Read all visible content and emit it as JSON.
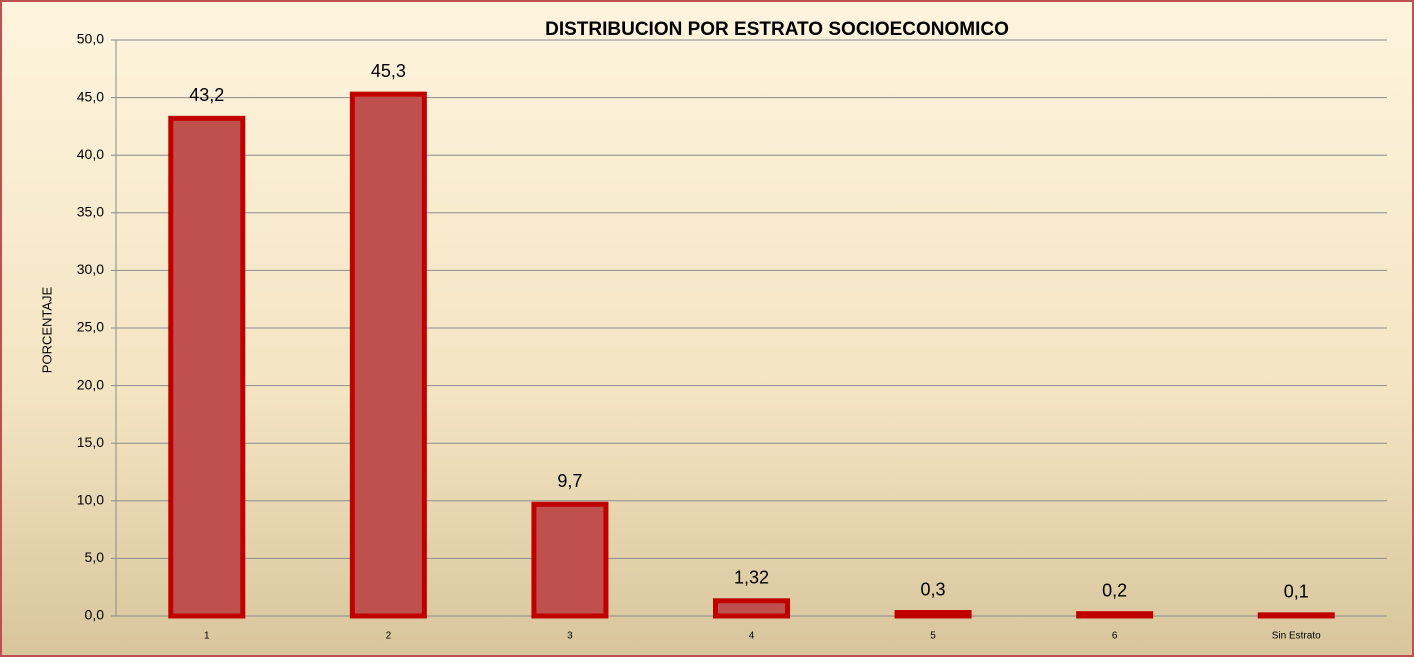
{
  "chart_data": {
    "type": "bar",
    "title": "DISTRIBUCION POR ESTRATO SOCIOECONOMICO",
    "y_label": "PORCENTAJE",
    "categories": [
      "1",
      "2",
      "3",
      "4",
      "5",
      "6",
      "Sin Estrato"
    ],
    "values": [
      43.2,
      45.3,
      9.7,
      1.32,
      0.3,
      0.2,
      0.1
    ],
    "value_labels": [
      "43,2",
      "45,3",
      "9,7",
      "1,32",
      "0,3",
      "0,2",
      "0,1"
    ],
    "color": "#c0504d",
    "edge_color": "#c00000",
    "ylim": [
      0,
      50
    ],
    "yticks": [
      {
        "value": 0,
        "label": "0,0"
      },
      {
        "value": 5,
        "label": "5,0"
      },
      {
        "value": 10,
        "label": "10,0"
      },
      {
        "value": 15,
        "label": "15,0"
      },
      {
        "value": 20,
        "label": "20,0"
      },
      {
        "value": 25,
        "label": "25,0"
      },
      {
        "value": 30,
        "label": "30,0"
      },
      {
        "value": 35,
        "label": "35,0"
      },
      {
        "value": 40,
        "label": "40,0"
      },
      {
        "value": 45,
        "label": "45,0"
      },
      {
        "value": 50,
        "label": "50,0"
      }
    ],
    "grid": true
  }
}
